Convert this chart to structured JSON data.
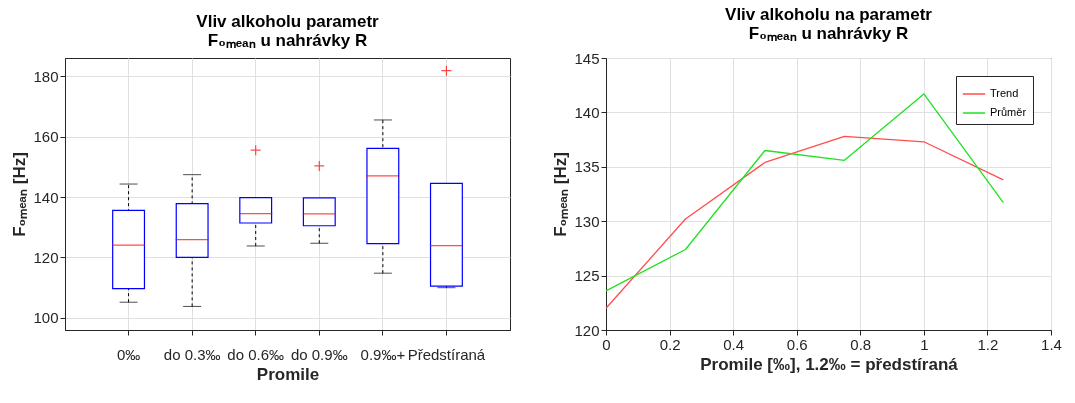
{
  "chart_data": [
    {
      "type": "box",
      "title": "Vliv alkoholu parametr\nF₀ₘₑₐₙ u nahrávky R",
      "xlabel": "Promile",
      "ylabel": "F₀ₘₑₐₙ [Hz]",
      "categories": [
        "0‰",
        "do 0.3‰",
        "do 0.6‰",
        "do 0.9‰",
        "0.9‰+",
        "Předstíraná"
      ],
      "boxes": [
        {
          "low": 105.2,
          "q1": 109.7,
          "median": 124.1,
          "q3": 135.6,
          "high": 144.3
        },
        {
          "low": 103.8,
          "q1": 120.0,
          "median": 125.9,
          "q3": 137.8,
          "high": 147.4
        },
        {
          "low": 123.8,
          "q1": 131.4,
          "median": 134.5,
          "q3": 139.8,
          "high": 139.8,
          "outliers": [
            155.5
          ]
        },
        {
          "low": 124.7,
          "q1": 130.5,
          "median": 134.4,
          "q3": 139.7,
          "high": 139.7,
          "outliers": [
            150.3
          ]
        },
        {
          "low": 114.8,
          "q1": 124.6,
          "median": 147.0,
          "q3": 156.1,
          "high": 165.5
        },
        {
          "low": 110.0,
          "q1": 110.5,
          "median": 123.9,
          "q3": 144.5,
          "high": 144.5,
          "outliers": [
            181.8
          ]
        }
      ],
      "ylim": [
        96,
        186
      ],
      "yticks": [
        100,
        120,
        140,
        160,
        180
      ],
      "grid": true
    },
    {
      "type": "line",
      "title": "Vliv alkoholu na parametr\nF₀ₘₑₐₙ u nahrávky R",
      "xlabel": "Promile [‰], 1.2‰ = předstíraná",
      "ylabel": "F₀ₘₑₐₙ [Hz]",
      "x": [
        0,
        0.25,
        0.5,
        0.75,
        1,
        1.25
      ],
      "series": [
        {
          "name": "Trend",
          "color": "#ff4d4d",
          "values": [
            122.0,
            130.2,
            135.4,
            137.8,
            137.3,
            133.8
          ]
        },
        {
          "name": "Průměr",
          "color": "#22e022",
          "values": [
            123.6,
            127.4,
            136.5,
            135.6,
            141.7,
            131.7
          ]
        }
      ],
      "xlim": [
        0,
        1.4
      ],
      "xticks": [
        0,
        0.2,
        0.4,
        0.6,
        0.8,
        1,
        1.2,
        1.4
      ],
      "ylim": [
        120,
        145
      ],
      "yticks": [
        120,
        125,
        130,
        135,
        140,
        145
      ],
      "grid": true,
      "legend": "top right"
    }
  ]
}
